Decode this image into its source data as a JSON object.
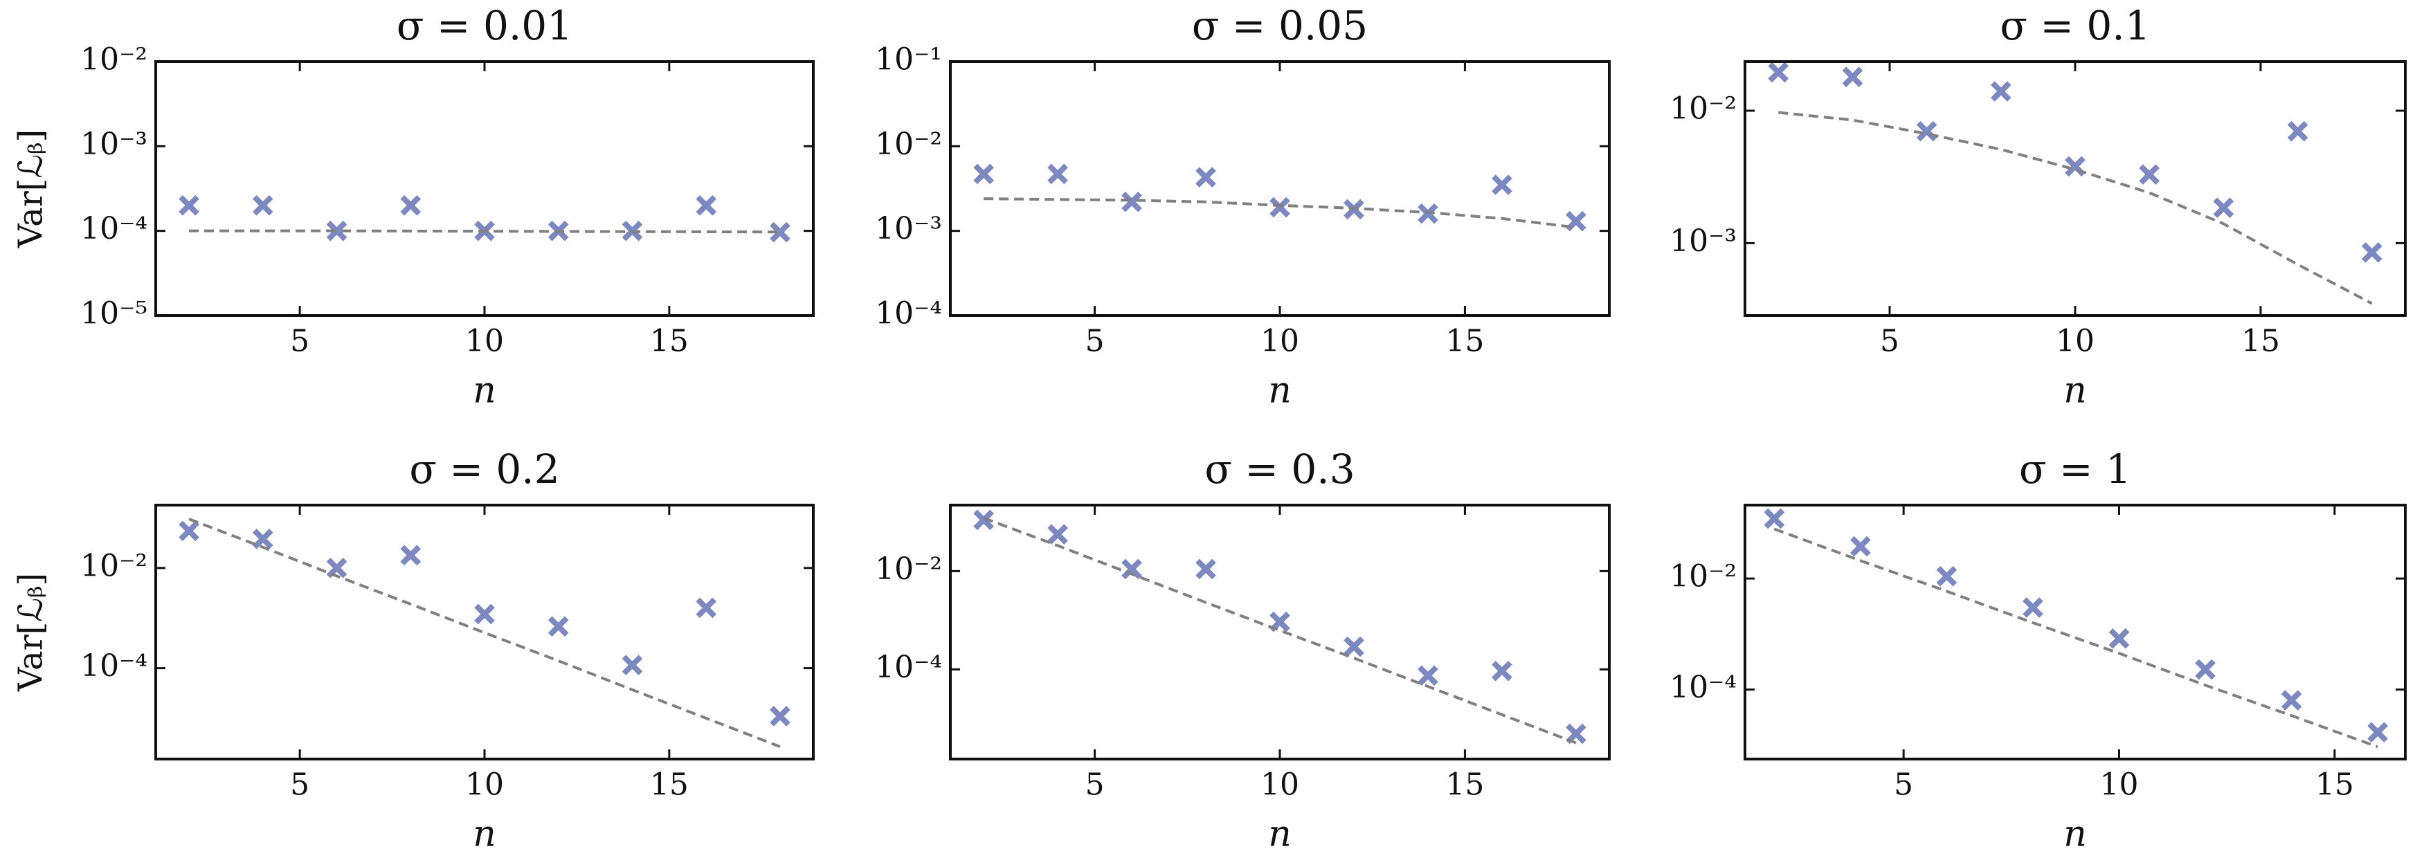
{
  "chart_data": [
    {
      "type": "scatter",
      "title": "σ = 0.01",
      "xlabel": "n",
      "ylabel": "Var[ℒᵦ]",
      "log_y": true,
      "x": [
        2,
        4,
        6,
        8,
        10,
        12,
        14,
        16,
        18
      ],
      "series": [
        {
          "type": "scatter",
          "color": "#7b88c2",
          "values": [
            0.0002,
            0.0002,
            0.0001,
            0.0002,
            0.0001,
            0.0001,
            0.0001,
            0.0002,
            9.65e-05
          ]
        },
        {
          "type": "line",
          "color": "#808080",
          "values": [
            0.0001,
            0.0001,
            0.0001,
            9.95e-05,
            9.9e-05,
            9.85e-05,
            9.8e-05,
            9.75e-05,
            9.7e-05
          ]
        }
      ],
      "xlim": [
        1.1,
        18.9
      ],
      "xticks": [
        5,
        10,
        15
      ],
      "ylim": [
        1e-05,
        0.01
      ],
      "yticks": [
        {
          "value": 1e-05,
          "label": "10⁻⁵"
        },
        {
          "value": 0.0001,
          "label": "10⁻⁴"
        },
        {
          "value": 0.001,
          "label": "10⁻³"
        },
        {
          "value": 0.01,
          "label": "10⁻²"
        }
      ]
    },
    {
      "type": "scatter",
      "title": "σ = 0.05",
      "xlabel": "n",
      "log_y": true,
      "x": [
        2,
        4,
        6,
        8,
        10,
        12,
        14,
        16,
        18
      ],
      "series": [
        {
          "type": "scatter",
          "color": "#7b88c2",
          "values": [
            0.0047,
            0.0047,
            0.0022,
            0.0043,
            0.0019,
            0.0018,
            0.0016,
            0.0035,
            0.0013
          ]
        },
        {
          "type": "line",
          "color": "#808080",
          "values": [
            0.0024,
            0.00235,
            0.0023,
            0.0022,
            0.002,
            0.00185,
            0.00165,
            0.0014,
            0.0011
          ]
        }
      ],
      "xlim": [
        1.1,
        18.9
      ],
      "xticks": [
        5,
        10,
        15
      ],
      "ylim": [
        0.0001,
        0.1
      ],
      "yticks": [
        {
          "value": 0.0001,
          "label": "10⁻⁴"
        },
        {
          "value": 0.001,
          "label": "10⁻³"
        },
        {
          "value": 0.01,
          "label": "10⁻²"
        },
        {
          "value": 0.1,
          "label": "10⁻¹"
        }
      ]
    },
    {
      "type": "scatter",
      "title": "σ = 0.1",
      "xlabel": "n",
      "log_y": true,
      "x": [
        2,
        4,
        6,
        8,
        10,
        12,
        14,
        16,
        18
      ],
      "series": [
        {
          "type": "scatter",
          "color": "#7b88c2",
          "values": [
            0.0195,
            0.018,
            0.007,
            0.014,
            0.0038,
            0.0033,
            0.00185,
            0.007,
            0.00085
          ]
        },
        {
          "type": "line",
          "color": "#808080",
          "values": [
            0.0097,
            0.0085,
            0.0067,
            0.0051,
            0.0036,
            0.0024,
            0.0014,
            0.00069,
            0.00035
          ]
        }
      ],
      "xlim": [
        1.1,
        18.9
      ],
      "xticks": [
        5,
        10,
        15
      ],
      "ylim": [
        0.000284,
        0.0235
      ],
      "yticks": [
        {
          "value": 0.001,
          "label": "10⁻³"
        },
        {
          "value": 0.01,
          "label": "10⁻²"
        }
      ]
    },
    {
      "type": "scatter",
      "title": "σ = 0.2",
      "xlabel": "n",
      "ylabel": "Var[ℒᵦ]",
      "log_y": true,
      "x": [
        2,
        4,
        6,
        8,
        10,
        12,
        14,
        16,
        18
      ],
      "series": [
        {
          "type": "scatter",
          "color": "#7b88c2",
          "values": [
            0.055,
            0.038,
            0.01,
            0.018,
            0.0012,
            0.00068,
            0.000115,
            0.0016,
            1.1e-05
          ]
        },
        {
          "type": "line",
          "color": "#808080",
          "values": [
            0.095,
            0.026,
            0.0069,
            0.0019,
            0.00051,
            0.00014,
            3.7e-05,
            1e-05,
            2.7e-06
          ]
        }
      ],
      "xlim": [
        1.1,
        18.9
      ],
      "xticks": [
        5,
        10,
        15
      ],
      "ylim": [
        1.53e-06,
        0.18
      ],
      "yticks": [
        {
          "value": 0.0001,
          "label": "10⁻⁴"
        },
        {
          "value": 0.01,
          "label": "10⁻²"
        }
      ]
    },
    {
      "type": "scatter",
      "title": "σ = 0.3",
      "xlabel": "n",
      "log_y": true,
      "x": [
        2,
        4,
        6,
        8,
        10,
        12,
        14,
        16,
        18
      ],
      "series": [
        {
          "type": "scatter",
          "color": "#7b88c2",
          "values": [
            0.11,
            0.056,
            0.011,
            0.011,
            0.00093,
            0.00029,
            7.5e-05,
            9.3e-05,
            4.9e-06
          ]
        },
        {
          "type": "line",
          "color": "#808080",
          "values": [
            0.12,
            0.033,
            0.0087,
            0.0023,
            0.00062,
            0.00017,
            4.5e-05,
            1.2e-05,
            3.2e-06
          ]
        }
      ],
      "xlim": [
        1.1,
        18.9
      ],
      "xticks": [
        5,
        10,
        15
      ],
      "ylim": [
        1.5e-06,
        0.22
      ],
      "yticks": [
        {
          "value": 0.0001,
          "label": "10⁻⁴"
        },
        {
          "value": 0.01,
          "label": "10⁻²"
        }
      ]
    },
    {
      "type": "scatter",
      "title": "σ = 1",
      "xlabel": "n",
      "log_y": true,
      "x": [
        2,
        4,
        6,
        8,
        10,
        12,
        14,
        16
      ],
      "series": [
        {
          "type": "scatter",
          "color": "#7b88c2",
          "values": [
            0.12,
            0.038,
            0.011,
            0.003,
            0.00083,
            0.00023,
            6.4e-05,
            1.7e-05
          ]
        },
        {
          "type": "line",
          "color": "#808080",
          "values": [
            0.078,
            0.021,
            0.0059,
            0.0016,
            0.00045,
            0.00012,
            3.4e-05,
            9.3e-06
          ]
        }
      ],
      "xlim": [
        1.32,
        16.64
      ],
      "xticks": [
        5,
        10,
        15
      ],
      "ylim": [
        5.6e-06,
        0.21
      ],
      "yticks": [
        {
          "value": 0.0001,
          "label": "10⁻⁴"
        },
        {
          "value": 0.01,
          "label": "10⁻²"
        }
      ]
    }
  ]
}
